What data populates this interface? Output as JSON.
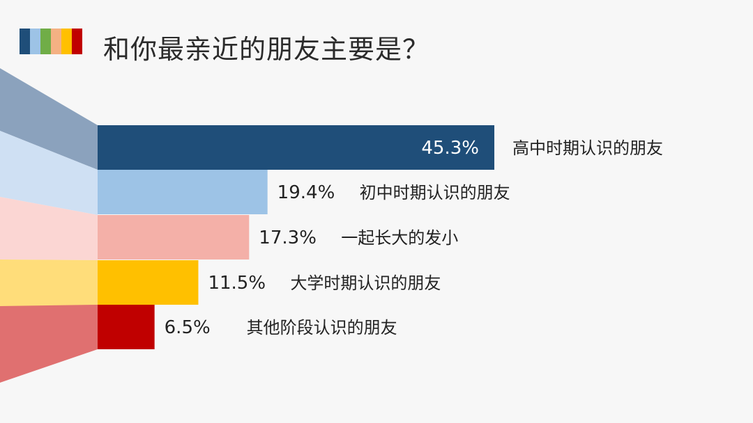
{
  "title": "和你最亲近的朋友主要是？",
  "title_stripes": [
    "#1f4e79",
    "#9dc3e6",
    "#70ad47",
    "#f4b183",
    "#ffc000",
    "#c00000"
  ],
  "chart_data": {
    "type": "bar",
    "orientation": "horizontal",
    "categories": [
      "高中时期认识的朋友",
      "初中时期认识的朋友",
      "一起长大的发小",
      "大学时期认识的朋友",
      "其他阶段认识的朋友"
    ],
    "values": [
      45.3,
      19.4,
      17.3,
      11.5,
      6.5
    ],
    "data_labels": [
      "45.3%",
      "19.4%",
      "17.3%",
      "11.5%",
      "6.5%"
    ],
    "colors": [
      "#1f4e79",
      "#9dc3e6",
      "#f4b0a8",
      "#ffc000",
      "#c00000"
    ],
    "fan_colors": [
      "#8ba2bd",
      "#cfe0f3",
      "#fbd6d3",
      "#ffdd7a",
      "#e07070"
    ],
    "xlim": [
      0,
      45.3
    ],
    "unit": "%"
  }
}
